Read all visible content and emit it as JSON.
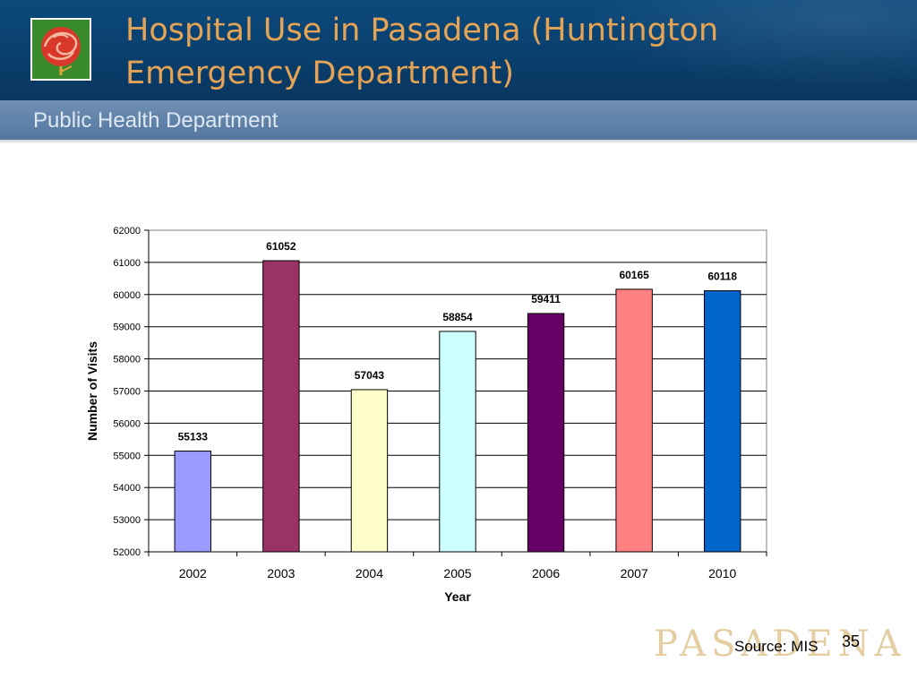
{
  "slide": {
    "title": "Hospital Use in Pasadena (Huntington Emergency Department)",
    "subtitle": "Public Health Department",
    "source": "Source: MIS",
    "page_number": "35",
    "watermark": "PASADENA",
    "logo_icon": "rose-logo-icon"
  },
  "colors": {
    "header": "#0a3f6d",
    "subheader": "#5f81a8",
    "title": "#e5a455",
    "subtitle": "#dfe8f2",
    "watermark": "#e3cda1"
  },
  "chart_data": {
    "type": "bar",
    "categories": [
      "2002",
      "2003",
      "2004",
      "2005",
      "2006",
      "2007",
      "2010"
    ],
    "values": [
      55133,
      61052,
      57043,
      58854,
      59411,
      60165,
      60118
    ],
    "data_labels": [
      "55133",
      "61052",
      "57043",
      "58854",
      "59411",
      "60165",
      "60118"
    ],
    "bar_colors": [
      "#9999ff",
      "#993366",
      "#ffffcc",
      "#ccffff",
      "#660066",
      "#ff8080",
      "#0066cc"
    ],
    "title": "",
    "xlabel": "Year",
    "ylabel": "Number of Visits",
    "ylim": [
      52000,
      62000
    ],
    "yticks": [
      "52000",
      "53000",
      "54000",
      "55000",
      "56000",
      "57000",
      "58000",
      "59000",
      "60000",
      "61000",
      "62000"
    ],
    "grid": true,
    "legend": false
  }
}
